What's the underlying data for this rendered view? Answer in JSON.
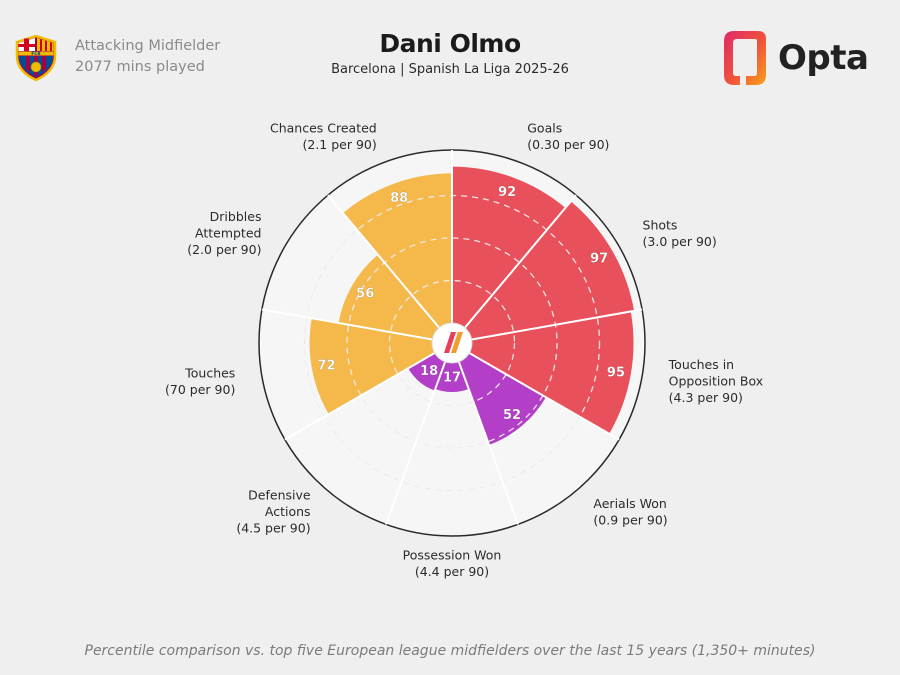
{
  "header": {
    "role": "Attacking Midfielder",
    "minutes": "2077 mins played",
    "player_name": "Dani Olmo",
    "subtitle": "Barcelona | Spanish La Liga 2025-26",
    "brand": "Opta",
    "crest_letters": "FCB"
  },
  "colors": {
    "attacking": "#e8505b",
    "possession": "#f5b84a",
    "defending": "#b33fc8",
    "empty_wedge": "#f6f6f6",
    "background": "#efefef"
  },
  "footnote": "Percentile comparison vs. top five European league midfielders over the last 15 years (1,350+ minutes)",
  "chart_data": {
    "type": "pie",
    "subtype": "polar-area",
    "rlim": [
      0,
      100
    ],
    "start": "top",
    "direction": "clockwise",
    "grid": true,
    "metrics": [
      {
        "label": [
          "Goals"
        ],
        "sub": "(0.30 per 90)",
        "value": 92,
        "group": "attacking"
      },
      {
        "label": [
          "Shots"
        ],
        "sub": "(3.0 per 90)",
        "value": 97,
        "group": "attacking"
      },
      {
        "label": [
          "Touches in",
          "Opposition Box"
        ],
        "sub": "(4.3 per 90)",
        "value": 95,
        "group": "attacking"
      },
      {
        "label": [
          "Aerials Won"
        ],
        "sub": "(0.9 per 90)",
        "value": 52,
        "group": "defending"
      },
      {
        "label": [
          "Possession Won"
        ],
        "sub": "(4.4 per 90)",
        "value": 17,
        "group": "defending"
      },
      {
        "label": [
          "Defensive",
          "Actions"
        ],
        "sub": "(4.5 per 90)",
        "value": 18,
        "group": "defending"
      },
      {
        "label": [
          "Touches"
        ],
        "sub": "(70 per 90)",
        "value": 72,
        "group": "possession"
      },
      {
        "label": [
          "Dribbles",
          "Attempted"
        ],
        "sub": "(2.0 per 90)",
        "value": 56,
        "group": "possession"
      },
      {
        "label": [
          "Chances Created"
        ],
        "sub": "(2.1 per 90)",
        "value": 88,
        "group": "possession"
      }
    ]
  }
}
